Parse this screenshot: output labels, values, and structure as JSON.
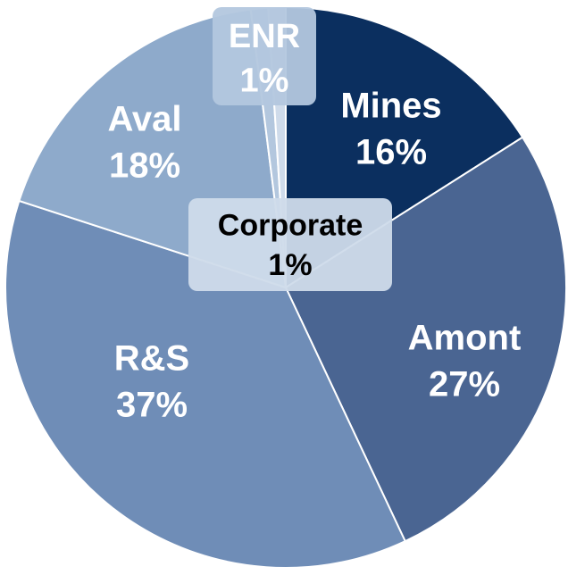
{
  "chart_data": {
    "type": "pie",
    "categories": [
      "Mines",
      "Amont",
      "R&S",
      "Aval",
      "ENR",
      "Corporate"
    ],
    "values": [
      16,
      27,
      37,
      18,
      1,
      1
    ],
    "value_labels": [
      "16%",
      "27%",
      "37%",
      "18%",
      "1%",
      "1%"
    ],
    "colors": [
      "#0b2f5f",
      "#4a6592",
      "#6f8db7",
      "#8eaacb",
      "#b3c7de",
      "#cfdbea"
    ]
  }
}
